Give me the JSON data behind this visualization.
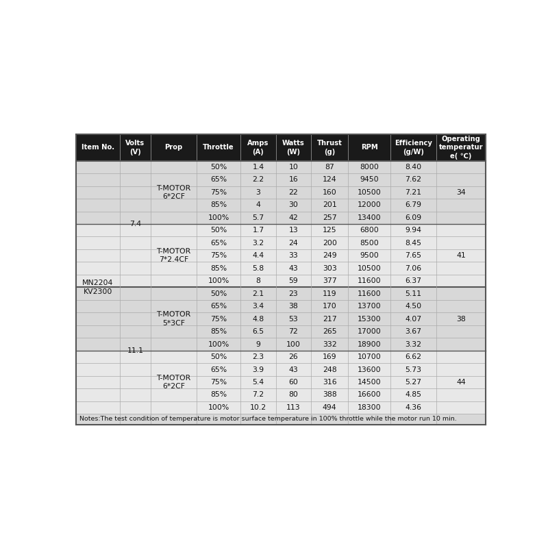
{
  "header": [
    "Item No.",
    "Volts\n(V)",
    "Prop",
    "Throttle",
    "Amps\n(A)",
    "Watts\n(W)",
    "Thrust\n(g)",
    "RPM",
    "Efficiency\n(g/W)",
    "Operating\ntemperatur\ne( ℃)"
  ],
  "header_bg": "#1a1a1a",
  "header_fg": "#ffffff",
  "row_bg_light": "#d8d8d8",
  "row_bg_medium": "#c8c8c8",
  "row_bg_white": "#f0f0f0",
  "border_color": "#aaaaaa",
  "border_heavy": "#555555",
  "note": "Notes:The test condition of temperature is motor surface temperature in 100% throttle while the motor run 10 min.",
  "col_widths_rel": [
    65,
    45,
    68,
    65,
    52,
    52,
    55,
    62,
    68,
    73
  ],
  "groups": [
    {
      "item_no": "MN2204\nKV2300",
      "volts": "7.4",
      "props": [
        {
          "prop": "T-MOTOR\n6*2CF",
          "rows": [
            {
              "throttle": "50%",
              "amps": "1.4",
              "watts": "10",
              "thrust": "87",
              "rpm": "8000",
              "efficiency": "8.40"
            },
            {
              "throttle": "65%",
              "amps": "2.2",
              "watts": "16",
              "thrust": "124",
              "rpm": "9450",
              "efficiency": "7.62"
            },
            {
              "throttle": "75%",
              "amps": "3",
              "watts": "22",
              "thrust": "160",
              "rpm": "10500",
              "efficiency": "7.21"
            },
            {
              "throttle": "85%",
              "amps": "4",
              "watts": "30",
              "thrust": "201",
              "rpm": "12000",
              "efficiency": "6.79"
            },
            {
              "throttle": "100%",
              "amps": "5.7",
              "watts": "42",
              "thrust": "257",
              "rpm": "13400",
              "efficiency": "6.09"
            }
          ],
          "temp": "34",
          "bg": "#d8d8d8"
        },
        {
          "prop": "T-MOTOR\n7*2.4CF",
          "rows": [
            {
              "throttle": "50%",
              "amps": "1.7",
              "watts": "13",
              "thrust": "125",
              "rpm": "6800",
              "efficiency": "9.94"
            },
            {
              "throttle": "65%",
              "amps": "3.2",
              "watts": "24",
              "thrust": "200",
              "rpm": "8500",
              "efficiency": "8.45"
            },
            {
              "throttle": "75%",
              "amps": "4.4",
              "watts": "33",
              "thrust": "249",
              "rpm": "9500",
              "efficiency": "7.65"
            },
            {
              "throttle": "85%",
              "amps": "5.8",
              "watts": "43",
              "thrust": "303",
              "rpm": "10500",
              "efficiency": "7.06"
            },
            {
              "throttle": "100%",
              "amps": "8",
              "watts": "59",
              "thrust": "377",
              "rpm": "11600",
              "efficiency": "6.37"
            }
          ],
          "temp": "41",
          "bg": "#e8e8e8"
        }
      ]
    },
    {
      "item_no": "MN2204\nKV2300",
      "volts": "11.1",
      "props": [
        {
          "prop": "T-MOTOR\n5*3CF",
          "rows": [
            {
              "throttle": "50%",
              "amps": "2.1",
              "watts": "23",
              "thrust": "119",
              "rpm": "11600",
              "efficiency": "5.11"
            },
            {
              "throttle": "65%",
              "amps": "3.4",
              "watts": "38",
              "thrust": "170",
              "rpm": "13700",
              "efficiency": "4.50"
            },
            {
              "throttle": "75%",
              "amps": "4.8",
              "watts": "53",
              "thrust": "217",
              "rpm": "15300",
              "efficiency": "4.07"
            },
            {
              "throttle": "85%",
              "amps": "6.5",
              "watts": "72",
              "thrust": "265",
              "rpm": "17000",
              "efficiency": "3.67"
            },
            {
              "throttle": "100%",
              "amps": "9",
              "watts": "100",
              "thrust": "332",
              "rpm": "18900",
              "efficiency": "3.32"
            }
          ],
          "temp": "38",
          "bg": "#d8d8d8"
        },
        {
          "prop": "T-MOTOR\n6*2CF",
          "rows": [
            {
              "throttle": "50%",
              "amps": "2.3",
              "watts": "26",
              "thrust": "169",
              "rpm": "10700",
              "efficiency": "6.62"
            },
            {
              "throttle": "65%",
              "amps": "3.9",
              "watts": "43",
              "thrust": "248",
              "rpm": "13600",
              "efficiency": "5.73"
            },
            {
              "throttle": "75%",
              "amps": "5.4",
              "watts": "60",
              "thrust": "316",
              "rpm": "14500",
              "efficiency": "5.27"
            },
            {
              "throttle": "85%",
              "amps": "7.2",
              "watts": "80",
              "thrust": "388",
              "rpm": "16600",
              "efficiency": "4.85"
            },
            {
              "throttle": "100%",
              "amps": "10.2",
              "watts": "113",
              "thrust": "494",
              "rpm": "18300",
              "efficiency": "4.36"
            }
          ],
          "temp": "44",
          "bg": "#e8e8e8"
        }
      ]
    }
  ]
}
